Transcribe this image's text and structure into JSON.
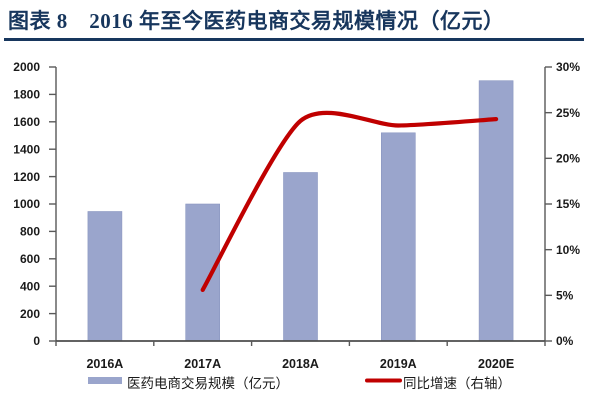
{
  "figure": {
    "title": "图表 8　2016 年至今医药电商交易规模情况（亿元）"
  },
  "colors": {
    "title": "#17365D",
    "rule": "#17365D",
    "bar_fill": "#9AA5CC",
    "bar_edge": "#8A96C0",
    "line": "#C00000",
    "axis": "#595959",
    "text": "#1A1A1A"
  },
  "chart_data": {
    "type": "bar",
    "subtype": "bar-line-combo",
    "categories": [
      "2016A",
      "2017A",
      "2018A",
      "2019A",
      "2020E"
    ],
    "series": [
      {
        "name": "医药电商交易规模（亿元）",
        "type": "bar",
        "axis": "left",
        "color": "#9AA5CC",
        "values": [
          945,
          1000,
          1230,
          1520,
          1900
        ]
      },
      {
        "name": "同比增速（右轴）",
        "type": "line",
        "axis": "right",
        "color": "#C00000",
        "values": [
          null,
          5.6,
          24.1,
          23.6,
          24.3
        ]
      }
    ],
    "left_axis": {
      "min": 0,
      "max": 2000,
      "step": 200,
      "suffix": ""
    },
    "right_axis": {
      "min": 0,
      "max": 30,
      "step": 5,
      "suffix": "%"
    },
    "grid": false,
    "legend_position": "bottom"
  }
}
